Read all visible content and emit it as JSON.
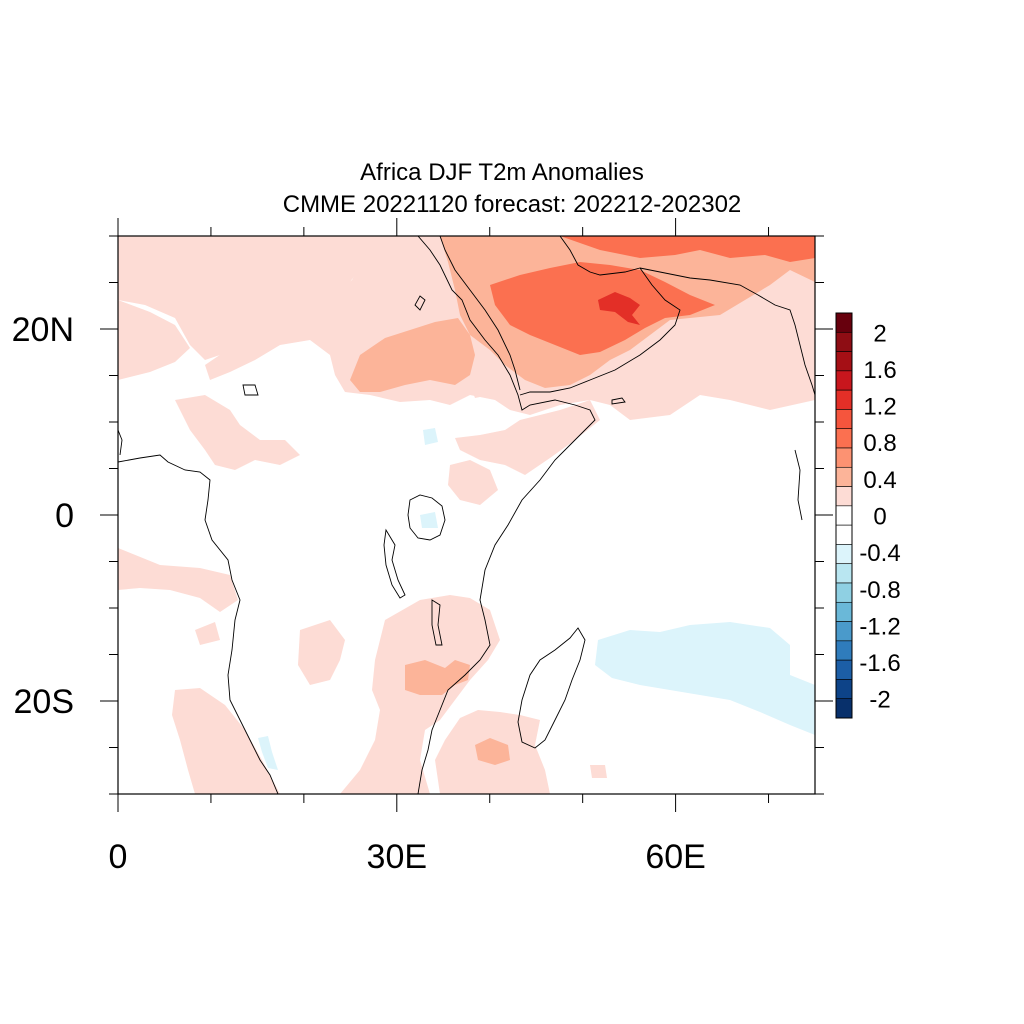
{
  "title": "Africa DJF T2m Anomalies",
  "subtitle": "CMME 20221120 forecast: 202212-202302",
  "map": {
    "lon_range": [
      0,
      75
    ],
    "lat_range": [
      -30,
      30
    ],
    "lon_ticks": [
      {
        "value": 0,
        "label": "0"
      },
      {
        "value": 30,
        "label": "30E"
      },
      {
        "value": 60,
        "label": "60E"
      }
    ],
    "lat_ticks": [
      {
        "value": 20,
        "label": "20N"
      },
      {
        "value": 0,
        "label": "0"
      },
      {
        "value": -20,
        "label": "20S"
      }
    ]
  },
  "colorbar": {
    "levels": [
      {
        "value": 2,
        "label": "2"
      },
      {
        "value": 1.6,
        "label": "1.6"
      },
      {
        "value": 1.2,
        "label": "1.2"
      },
      {
        "value": 0.8,
        "label": "0.8"
      },
      {
        "value": 0.4,
        "label": "0.4"
      },
      {
        "value": 0,
        "label": "0"
      },
      {
        "value": -0.4,
        "label": "-0.4"
      },
      {
        "value": -0.8,
        "label": "-0.8"
      },
      {
        "value": -1.2,
        "label": "-1.2"
      },
      {
        "value": -1.6,
        "label": "-1.6"
      },
      {
        "value": -2,
        "label": "-2"
      }
    ],
    "colors": [
      "#67000d",
      "#8e0d14",
      "#a50f15",
      "#c8161d",
      "#e32f27",
      "#f5553d",
      "#fb7050",
      "#fc9272",
      "#fcb499",
      "#fddcd5",
      "#ffffff",
      "#ffffff",
      "#dcf4fb",
      "#b9e6f1",
      "#8fd0e3",
      "#6ab8d8",
      "#4a9acb",
      "#2f7cbc",
      "#1c5ea6",
      "#0d4388",
      "#08306b"
    ]
  }
}
